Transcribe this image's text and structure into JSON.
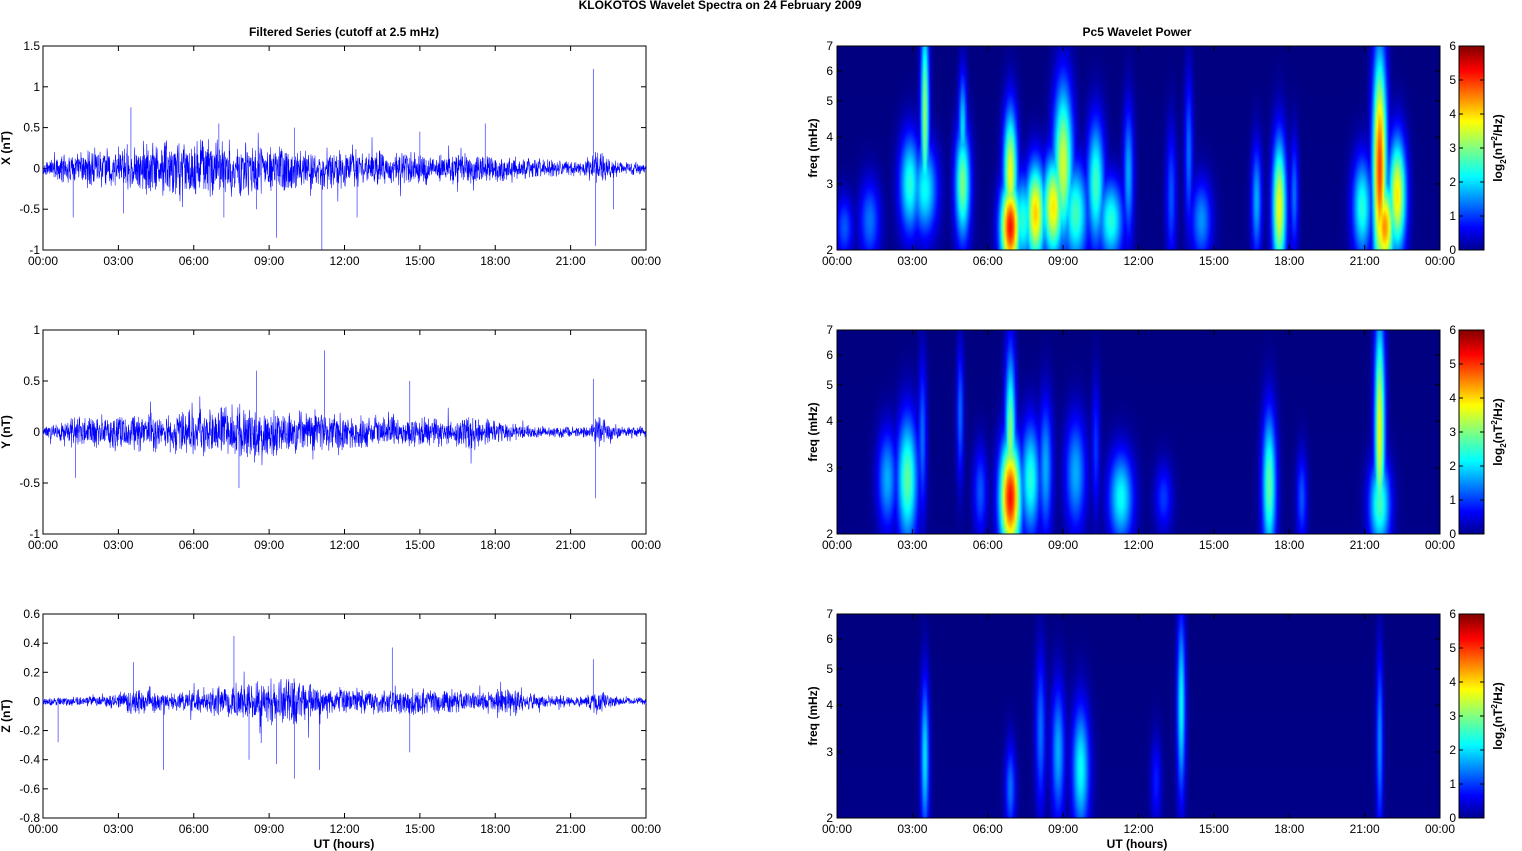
{
  "figure": {
    "title": "KLOKOTOS Wavelet Spectra on 24 February  2009",
    "left_title": "Filtered Series (cutoff at 2.5 mHz)",
    "right_title": "Pc5 Wavelet Power",
    "xlabel": "UT (hours)"
  },
  "colors": {
    "trace": "#0000ff",
    "axes": "#000000",
    "jet_low": "#00008f",
    "jet_high": "#800000"
  },
  "chart_data": [
    {
      "type": "line",
      "panel": "time-series-x",
      "title": "Filtered Series (cutoff at 2.5 mHz)",
      "ylabel": "X (nT)",
      "xlim": [
        0,
        24
      ],
      "ylim": [
        -1,
        1.5
      ],
      "x_ticks": [
        "00:00",
        "03:00",
        "06:00",
        "09:00",
        "12:00",
        "15:00",
        "18:00",
        "21:00",
        "00:00"
      ],
      "y_ticks": [
        "1.5",
        "1",
        "0.5",
        "0",
        "-0.5",
        "-1"
      ],
      "y_tick_values": [
        1.5,
        1,
        0.5,
        0,
        -0.5,
        -1
      ],
      "series": [
        {
          "envelope": [
            [
              0,
              0.1
            ],
            [
              1,
              0.2
            ],
            [
              3,
              0.3
            ],
            [
              6.5,
              0.45
            ],
            [
              8,
              0.35
            ],
            [
              10,
              0.3
            ],
            [
              13,
              0.25
            ],
            [
              16,
              0.22
            ],
            [
              18,
              0.18
            ],
            [
              20,
              0.12
            ],
            [
              21.5,
              0.1
            ],
            [
              22,
              0.25
            ],
            [
              23,
              0.1
            ],
            [
              24,
              0.08
            ]
          ],
          "spikes": [
            [
              1.2,
              -0.6
            ],
            [
              3.5,
              0.75
            ],
            [
              3.2,
              -0.55
            ],
            [
              7.0,
              0.55
            ],
            [
              7.2,
              -0.6
            ],
            [
              8.5,
              -0.5
            ],
            [
              9.3,
              -0.85
            ],
            [
              11.1,
              -1.0
            ],
            [
              10.0,
              0.5
            ],
            [
              12.5,
              -0.6
            ],
            [
              15.0,
              0.45
            ],
            [
              17.6,
              0.55
            ],
            [
              21.9,
              1.22
            ],
            [
              22.0,
              -0.95
            ],
            [
              22.7,
              -0.5
            ]
          ]
        }
      ]
    },
    {
      "type": "line",
      "panel": "time-series-y",
      "ylabel": "Y (nT)",
      "xlim": [
        0,
        24
      ],
      "ylim": [
        -1,
        1
      ],
      "x_ticks": [
        "00:00",
        "03:00",
        "06:00",
        "09:00",
        "12:00",
        "15:00",
        "18:00",
        "21:00",
        "00:00"
      ],
      "y_ticks": [
        "1",
        "0.5",
        "0",
        "-0.5",
        "-1"
      ],
      "y_tick_values": [
        1,
        0.5,
        0,
        -0.5,
        -1
      ],
      "series": [
        {
          "envelope": [
            [
              0,
              0.06
            ],
            [
              1,
              0.15
            ],
            [
              3,
              0.2
            ],
            [
              6,
              0.25
            ],
            [
              7.5,
              0.3
            ],
            [
              9,
              0.25
            ],
            [
              12,
              0.2
            ],
            [
              15,
              0.15
            ],
            [
              17,
              0.18
            ],
            [
              18,
              0.12
            ],
            [
              20,
              0.06
            ],
            [
              21.8,
              0.06
            ],
            [
              22,
              0.2
            ],
            [
              23,
              0.06
            ],
            [
              24,
              0.06
            ]
          ],
          "spikes": [
            [
              1.3,
              -0.45
            ],
            [
              7.8,
              -0.55
            ],
            [
              8.5,
              0.6
            ],
            [
              11.2,
              0.8
            ],
            [
              14.6,
              0.5
            ],
            [
              21.9,
              0.52
            ],
            [
              22.0,
              -0.65
            ]
          ]
        }
      ]
    },
    {
      "type": "line",
      "panel": "time-series-z",
      "ylabel": "Z (nT)",
      "xlabel": "UT (hours)",
      "xlim": [
        0,
        24
      ],
      "ylim": [
        -0.8,
        0.6
      ],
      "x_ticks": [
        "00:00",
        "03:00",
        "06:00",
        "09:00",
        "12:00",
        "15:00",
        "18:00",
        "21:00",
        "00:00"
      ],
      "y_ticks": [
        "0.6",
        "0.4",
        "0.2",
        "0",
        "-0.2",
        "-0.4",
        "-0.6",
        "-0.8"
      ],
      "y_tick_values": [
        0.6,
        0.4,
        0.2,
        0,
        -0.2,
        -0.4,
        -0.6,
        -0.8
      ],
      "series": [
        {
          "envelope": [
            [
              0,
              0.03
            ],
            [
              3,
              0.05
            ],
            [
              3.6,
              0.12
            ],
            [
              5,
              0.06
            ],
            [
              7,
              0.12
            ],
            [
              8.5,
              0.18
            ],
            [
              10,
              0.2
            ],
            [
              11,
              0.12
            ],
            [
              13,
              0.09
            ],
            [
              14,
              0.12
            ],
            [
              17.5,
              0.07
            ],
            [
              18,
              0.11
            ],
            [
              19,
              0.1
            ],
            [
              20,
              0.05
            ],
            [
              21.5,
              0.04
            ],
            [
              22,
              0.1
            ],
            [
              23,
              0.03
            ],
            [
              24,
              0.03
            ]
          ],
          "spikes": [
            [
              0.6,
              -0.28
            ],
            [
              3.6,
              0.27
            ],
            [
              4.8,
              -0.47
            ],
            [
              7.6,
              0.45
            ],
            [
              8.2,
              -0.4
            ],
            [
              9.3,
              -0.43
            ],
            [
              10.0,
              -0.53
            ],
            [
              11.0,
              -0.47
            ],
            [
              13.9,
              0.37
            ],
            [
              14.6,
              -0.35
            ],
            [
              21.9,
              0.29
            ]
          ]
        }
      ]
    },
    {
      "type": "heatmap",
      "panel": "wavelet-power-x",
      "title": "Pc5 Wavelet Power",
      "ylabel": "freq (mHz)",
      "colorbar_label": "log2(nT2/Hz)",
      "colormap": "jet",
      "xlim": [
        0,
        24
      ],
      "ylim": [
        2,
        7
      ],
      "yscale": "log",
      "clim": [
        0,
        6
      ],
      "x_ticks": [
        "00:00",
        "03:00",
        "06:00",
        "09:00",
        "12:00",
        "15:00",
        "18:00",
        "21:00",
        "00:00"
      ],
      "y_ticks": [
        "7",
        "6",
        "5",
        "4",
        "3",
        "2"
      ],
      "y_tick_values": [
        7,
        6,
        5,
        4,
        3,
        2
      ],
      "colorbar_ticks": [
        "6",
        "5",
        "4",
        "3",
        "2",
        "1",
        "0"
      ],
      "blobs": [
        {
          "t": 0.3,
          "f": 2.3,
          "p": 1.4,
          "dt": 0.25,
          "df": 0.14
        },
        {
          "t": 1.3,
          "f": 2.4,
          "p": 1.6,
          "dt": 0.3,
          "df": 0.18
        },
        {
          "t": 2.9,
          "f": 3.0,
          "p": 2.8,
          "dt": 0.3,
          "df": 0.22
        },
        {
          "t": 3.5,
          "f": 4.6,
          "p": 3.6,
          "dt": 0.12,
          "df": 0.45
        },
        {
          "t": 3.5,
          "f": 2.9,
          "p": 2.6,
          "dt": 0.35,
          "df": 0.2
        },
        {
          "t": 5.0,
          "f": 3.0,
          "p": 3.4,
          "dt": 0.22,
          "df": 0.25
        },
        {
          "t": 5.0,
          "f": 4.2,
          "p": 2.4,
          "dt": 0.12,
          "df": 0.25
        },
        {
          "t": 6.9,
          "f": 2.3,
          "p": 5.9,
          "dt": 0.28,
          "df": 0.2
        },
        {
          "t": 6.9,
          "f": 3.2,
          "p": 4.2,
          "dt": 0.2,
          "df": 0.28
        },
        {
          "t": 7.4,
          "f": 2.4,
          "p": 2.8,
          "dt": 0.35,
          "df": 0.2
        },
        {
          "t": 7.9,
          "f": 2.5,
          "p": 4.6,
          "dt": 0.28,
          "df": 0.22
        },
        {
          "t": 8.6,
          "f": 2.6,
          "p": 4.4,
          "dt": 0.3,
          "df": 0.22
        },
        {
          "t": 9.0,
          "f": 3.4,
          "p": 4.0,
          "dt": 0.28,
          "df": 0.35
        },
        {
          "t": 9.5,
          "f": 2.5,
          "p": 3.0,
          "dt": 0.35,
          "df": 0.22
        },
        {
          "t": 10.3,
          "f": 3.0,
          "p": 3.0,
          "dt": 0.25,
          "df": 0.28
        },
        {
          "t": 10.9,
          "f": 2.4,
          "p": 2.8,
          "dt": 0.35,
          "df": 0.18
        },
        {
          "t": 11.6,
          "f": 3.2,
          "p": 2.0,
          "dt": 0.15,
          "df": 0.3
        },
        {
          "t": 13.3,
          "f": 2.8,
          "p": 1.4,
          "dt": 0.15,
          "df": 0.3
        },
        {
          "t": 14.0,
          "f": 3.6,
          "p": 1.6,
          "dt": 0.12,
          "df": 0.35
        },
        {
          "t": 14.5,
          "f": 2.4,
          "p": 1.8,
          "dt": 0.3,
          "df": 0.18
        },
        {
          "t": 16.7,
          "f": 2.7,
          "p": 2.0,
          "dt": 0.15,
          "df": 0.25
        },
        {
          "t": 17.6,
          "f": 2.6,
          "p": 4.2,
          "dt": 0.2,
          "df": 0.3
        },
        {
          "t": 18.2,
          "f": 2.8,
          "p": 1.6,
          "dt": 0.12,
          "df": 0.25
        },
        {
          "t": 20.9,
          "f": 2.6,
          "p": 2.8,
          "dt": 0.28,
          "df": 0.22
        },
        {
          "t": 21.6,
          "f": 3.3,
          "p": 5.6,
          "dt": 0.2,
          "df": 0.5
        },
        {
          "t": 21.8,
          "f": 2.3,
          "p": 5.0,
          "dt": 0.28,
          "df": 0.2
        },
        {
          "t": 22.3,
          "f": 2.8,
          "p": 4.4,
          "dt": 0.25,
          "df": 0.25
        }
      ]
    },
    {
      "type": "heatmap",
      "panel": "wavelet-power-y",
      "ylabel": "freq (mHz)",
      "colorbar_label": "log2(nT2/Hz)",
      "colormap": "jet",
      "xlim": [
        0,
        24
      ],
      "ylim": [
        2,
        7
      ],
      "yscale": "log",
      "clim": [
        0,
        6
      ],
      "x_ticks": [
        "00:00",
        "03:00",
        "06:00",
        "09:00",
        "12:00",
        "15:00",
        "18:00",
        "21:00",
        "00:00"
      ],
      "y_ticks": [
        "7",
        "6",
        "5",
        "4",
        "3",
        "2"
      ],
      "y_tick_values": [
        7,
        6,
        5,
        4,
        3,
        2
      ],
      "colorbar_ticks": [
        "6",
        "5",
        "4",
        "3",
        "2",
        "1",
        "0"
      ],
      "blobs": [
        {
          "t": 2.0,
          "f": 2.8,
          "p": 2.0,
          "dt": 0.28,
          "df": 0.22
        },
        {
          "t": 2.8,
          "f": 2.8,
          "p": 3.2,
          "dt": 0.3,
          "df": 0.28
        },
        {
          "t": 3.4,
          "f": 3.6,
          "p": 1.6,
          "dt": 0.12,
          "df": 0.35
        },
        {
          "t": 4.9,
          "f": 4.2,
          "p": 1.6,
          "dt": 0.1,
          "df": 0.3
        },
        {
          "t": 5.7,
          "f": 2.6,
          "p": 1.4,
          "dt": 0.2,
          "df": 0.2
        },
        {
          "t": 6.9,
          "f": 2.5,
          "p": 5.9,
          "dt": 0.3,
          "df": 0.25
        },
        {
          "t": 6.9,
          "f": 3.5,
          "p": 3.6,
          "dt": 0.15,
          "df": 0.4
        },
        {
          "t": 7.7,
          "f": 2.8,
          "p": 2.8,
          "dt": 0.28,
          "df": 0.25
        },
        {
          "t": 8.3,
          "f": 3.0,
          "p": 2.0,
          "dt": 0.2,
          "df": 0.3
        },
        {
          "t": 9.5,
          "f": 2.9,
          "p": 2.0,
          "dt": 0.3,
          "df": 0.25
        },
        {
          "t": 10.3,
          "f": 3.4,
          "p": 1.2,
          "dt": 0.12,
          "df": 0.3
        },
        {
          "t": 11.3,
          "f": 2.5,
          "p": 2.6,
          "dt": 0.35,
          "df": 0.2
        },
        {
          "t": 13.0,
          "f": 2.5,
          "p": 1.2,
          "dt": 0.25,
          "df": 0.15
        },
        {
          "t": 17.2,
          "f": 2.7,
          "p": 3.2,
          "dt": 0.2,
          "df": 0.32
        },
        {
          "t": 18.5,
          "f": 2.5,
          "p": 1.4,
          "dt": 0.15,
          "df": 0.2
        },
        {
          "t": 21.6,
          "f": 3.8,
          "p": 4.2,
          "dt": 0.15,
          "df": 0.5
        },
        {
          "t": 21.6,
          "f": 2.4,
          "p": 3.0,
          "dt": 0.3,
          "df": 0.2
        }
      ]
    },
    {
      "type": "heatmap",
      "panel": "wavelet-power-z",
      "ylabel": "freq (mHz)",
      "xlabel": "UT (hours)",
      "colorbar_label": "log2(nT2/Hz)",
      "colormap": "jet",
      "xlim": [
        0,
        24
      ],
      "ylim": [
        2,
        7
      ],
      "yscale": "log",
      "clim": [
        0,
        6
      ],
      "x_ticks": [
        "00:00",
        "03:00",
        "06:00",
        "09:00",
        "12:00",
        "15:00",
        "18:00",
        "21:00",
        "00:00"
      ],
      "y_ticks": [
        "7",
        "6",
        "5",
        "4",
        "3",
        "2"
      ],
      "y_tick_values": [
        7,
        6,
        5,
        4,
        3,
        2
      ],
      "colorbar_ticks": [
        "6",
        "5",
        "4",
        "3",
        "2",
        "1",
        "0"
      ],
      "blobs": [
        {
          "t": 3.5,
          "f": 2.9,
          "p": 2.4,
          "dt": 0.12,
          "df": 0.35
        },
        {
          "t": 6.9,
          "f": 2.4,
          "p": 1.6,
          "dt": 0.15,
          "df": 0.2
        },
        {
          "t": 8.1,
          "f": 3.4,
          "p": 1.6,
          "dt": 0.15,
          "df": 0.35
        },
        {
          "t": 8.8,
          "f": 3.0,
          "p": 2.0,
          "dt": 0.2,
          "df": 0.3
        },
        {
          "t": 9.7,
          "f": 2.7,
          "p": 2.6,
          "dt": 0.25,
          "df": 0.28
        },
        {
          "t": 12.7,
          "f": 2.5,
          "p": 1.0,
          "dt": 0.15,
          "df": 0.2
        },
        {
          "t": 13.7,
          "f": 4.0,
          "p": 2.6,
          "dt": 0.12,
          "df": 0.4
        },
        {
          "t": 21.6,
          "f": 3.2,
          "p": 1.8,
          "dt": 0.1,
          "df": 0.4
        }
      ]
    }
  ]
}
